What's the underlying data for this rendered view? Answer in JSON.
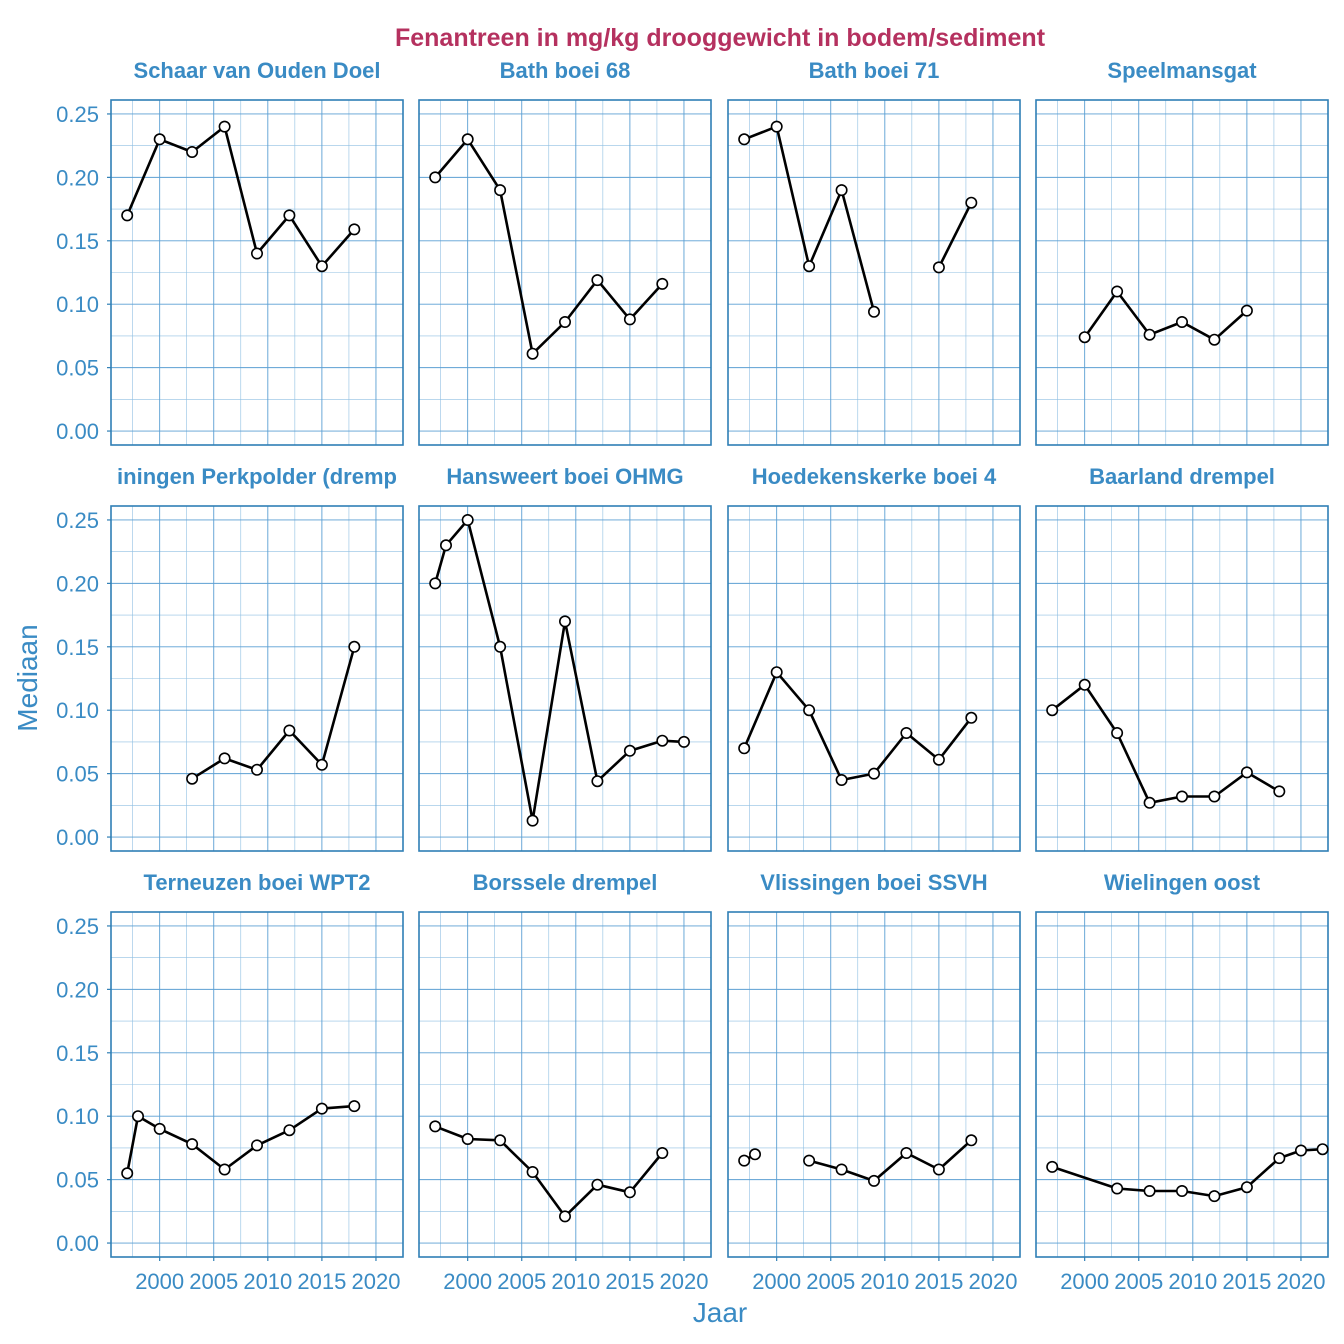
{
  "colors": {
    "title": "#b5315f",
    "strip_text": "#3a8bc4",
    "axis_text": "#3a8bc4",
    "grid_major": "#5b9fd3",
    "grid_minor": "#8fbfe2",
    "panel_border": "#2f7fb5",
    "line": "#000000",
    "point_fill": "#ffffff"
  },
  "chart_data": {
    "type": "line",
    "title": "Fenantreen in mg/kg drooggewicht in bodem/sediment",
    "xlabel": "Jaar",
    "ylabel": "Mediaan",
    "xlim": [
      1995.5,
      2022.5
    ],
    "ylim": [
      -0.011,
      0.261
    ],
    "x_ticks": [
      2000,
      2005,
      2010,
      2015,
      2020
    ],
    "x_tick_labels": [
      "2000",
      "2005",
      "2010",
      "2015",
      "2020"
    ],
    "y_ticks": [
      0,
      0.05,
      0.1,
      0.15,
      0.2,
      0.25
    ],
    "y_tick_labels": [
      "0.00",
      "0.05",
      "0.10",
      "0.15",
      "0.20",
      "0.25"
    ],
    "grid": true,
    "panels": [
      {
        "name": "Schaar van Ouden Doel",
        "segments": [
          [
            [
              1997,
              0.17
            ],
            [
              2000,
              0.23
            ],
            [
              2003,
              0.22
            ],
            [
              2006,
              0.24
            ],
            [
              2009,
              0.14
            ],
            [
              2012,
              0.17
            ],
            [
              2015,
              0.13
            ],
            [
              2018,
              0.159
            ]
          ]
        ]
      },
      {
        "name": "Bath boei 68",
        "segments": [
          [
            [
              1997,
              0.2
            ],
            [
              2000,
              0.23
            ],
            [
              2003,
              0.19
            ],
            [
              2006,
              0.061
            ],
            [
              2009,
              0.086
            ],
            [
              2012,
              0.119
            ],
            [
              2015,
              0.088
            ],
            [
              2018,
              0.116
            ]
          ]
        ]
      },
      {
        "name": "Bath boei 71",
        "segments": [
          [
            [
              1997,
              0.23
            ],
            [
              2000,
              0.24
            ],
            [
              2003,
              0.13
            ],
            [
              2006,
              0.19
            ],
            [
              2009,
              0.094
            ]
          ],
          [
            [
              2015,
              0.129
            ],
            [
              2018,
              0.18
            ]
          ]
        ]
      },
      {
        "name": "Speelmansgat",
        "segments": [
          [
            [
              2000,
              0.074
            ],
            [
              2003,
              0.11
            ],
            [
              2006,
              0.076
            ],
            [
              2009,
              0.086
            ],
            [
              2012,
              0.072
            ],
            [
              2015,
              0.095
            ]
          ]
        ]
      },
      {
        "name": "Hansweert boei OHMG",
        "segments": [
          [
            [
              1997,
              0.2
            ],
            [
              1998,
              0.23
            ],
            [
              2000,
              0.25
            ],
            [
              2003,
              0.15
            ],
            [
              2006,
              0.013
            ],
            [
              2009,
              0.17
            ],
            [
              2012,
              0.044
            ],
            [
              2015,
              0.068
            ],
            [
              2018,
              0.076
            ],
            [
              2020,
              0.075
            ]
          ]
        ]
      },
      {
        "name": "Hoedekenskerke boei 4",
        "segments": [
          [
            [
              1997,
              0.07
            ],
            [
              2000,
              0.13
            ],
            [
              2003,
              0.1
            ],
            [
              2006,
              0.045
            ],
            [
              2009,
              0.05
            ],
            [
              2012,
              0.082
            ],
            [
              2015,
              0.061
            ],
            [
              2018,
              0.094
            ]
          ]
        ]
      },
      {
        "name": "Baarland drempel",
        "segments": [
          [
            [
              1997,
              0.1
            ],
            [
              2000,
              0.12
            ],
            [
              2003,
              0.082
            ],
            [
              2006,
              0.027
            ],
            [
              2009,
              0.032
            ],
            [
              2012,
              0.032
            ],
            [
              2015,
              0.051
            ],
            [
              2018,
              0.036
            ]
          ]
        ]
      },
      {
        "name": "Terneuzen boei WPT2",
        "segments": [
          [
            [
              1997,
              0.055
            ],
            [
              1998,
              0.1
            ],
            [
              2000,
              0.09
            ],
            [
              2003,
              0.078
            ],
            [
              2006,
              0.058
            ],
            [
              2009,
              0.077
            ],
            [
              2012,
              0.089
            ],
            [
              2015,
              0.106
            ],
            [
              2018,
              0.108
            ]
          ]
        ]
      },
      {
        "name": "Borssele drempel",
        "segments": [
          [
            [
              1997,
              0.092
            ],
            [
              2000,
              0.082
            ],
            [
              2003,
              0.081
            ],
            [
              2006,
              0.056
            ],
            [
              2009,
              0.021
            ],
            [
              2012,
              0.046
            ],
            [
              2015,
              0.04
            ],
            [
              2018,
              0.071
            ]
          ]
        ]
      },
      {
        "name": "Vlissingen boei SSVH",
        "segments": [
          [
            [
              1997,
              0.065
            ],
            [
              1998,
              0.07
            ]
          ],
          [
            [
              2003,
              0.065
            ],
            [
              2006,
              0.058
            ],
            [
              2009,
              0.049
            ],
            [
              2012,
              0.071
            ],
            [
              2015,
              0.058
            ],
            [
              2018,
              0.081
            ]
          ]
        ]
      },
      {
        "name": "Wielingen oost",
        "segments": [
          [
            [
              1997,
              0.06
            ],
            [
              2003,
              0.043
            ],
            [
              2006,
              0.041
            ],
            [
              2009,
              0.041
            ],
            [
              2012,
              0.037
            ],
            [
              2015,
              0.044
            ],
            [
              2018,
              0.067
            ],
            [
              2020,
              0.073
            ],
            [
              2022,
              0.074
            ]
          ]
        ]
      }
    ]
  }
}
